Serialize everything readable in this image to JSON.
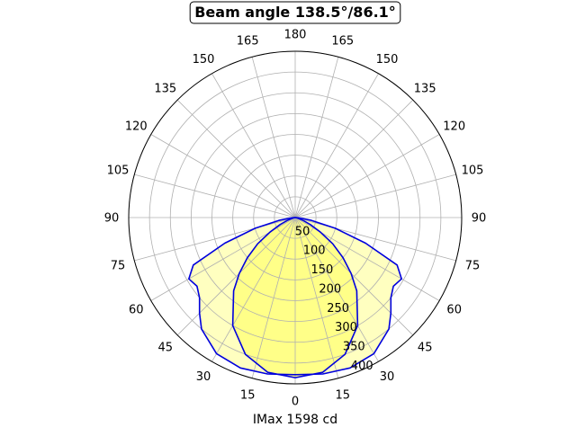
{
  "chart_data": {
    "type": "polar",
    "title": "Beam angle 138.5°/86.1°",
    "xlabel": "IMax 1598 cd",
    "angle_tick_labels": [
      "0",
      "15",
      "30",
      "45",
      "60",
      "75",
      "90",
      "105",
      "120",
      "135",
      "150",
      "165",
      "180",
      "165",
      "150",
      "135",
      "120",
      "105",
      "90",
      "75",
      "60",
      "45",
      "30",
      "15"
    ],
    "radial_tick_labels": [
      "50",
      "100",
      "150",
      "200",
      "250",
      "300",
      "350",
      "400"
    ],
    "radial_range": [
      0,
      400
    ],
    "grid": true,
    "colors": {
      "curve": "#0000dd",
      "fill_outer": "#ffffc0",
      "fill_inner": "#ffff88",
      "grid": "#b0b0b0"
    },
    "series": [
      {
        "angles": [
          0,
          10,
          20,
          30,
          40,
          45,
          50,
          55,
          60,
          65,
          70,
          75,
          80,
          85,
          90
        ],
        "values": [
          378,
          382,
          385,
          378,
          350,
          325,
          300,
          288,
          295,
          270,
          180,
          100,
          40,
          10,
          0
        ]
      },
      {
        "angles": [
          0,
          10,
          20,
          30,
          40,
          45,
          50,
          55,
          60,
          65,
          70,
          75,
          80,
          85,
          90
        ],
        "values": [
          385,
          378,
          350,
          300,
          230,
          190,
          150,
          110,
          70,
          40,
          20,
          8,
          3,
          0,
          0
        ]
      }
    ]
  }
}
